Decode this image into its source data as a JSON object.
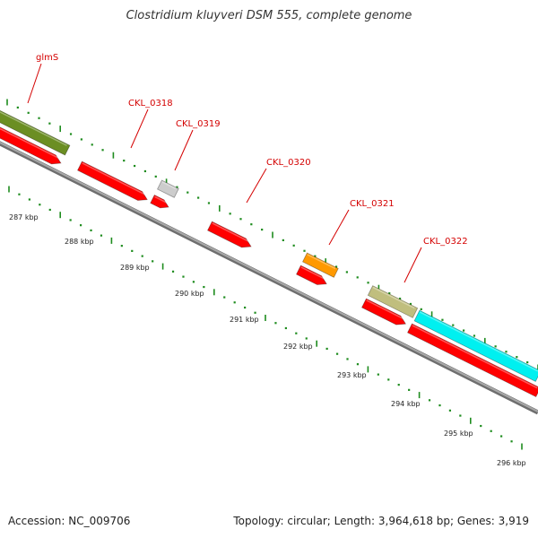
{
  "title": "Clostridium kluyveri DSM 555, complete genome",
  "footer": {
    "accession": "Accession: NC_009706",
    "stats": "Topology: circular; Length: 3,964,618 bp; Genes: 3,919"
  },
  "colors": {
    "backbone": "#888888",
    "forward_gene": "#ff0000",
    "tick": "#1e8c1e",
    "label": "#d40000",
    "kbp_label": "#222222",
    "feature_olive": "#6b8e23",
    "feature_grey": "#cccccc",
    "feature_orange": "#ff9900",
    "feature_khaki": "#c0be7e",
    "feature_cyan": "#00f0f0"
  },
  "gene_labels": [
    {
      "name": "glmS"
    },
    {
      "name": "CKL_0318"
    },
    {
      "name": "CKL_0319"
    },
    {
      "name": "CKL_0320"
    },
    {
      "name": "CKL_0321"
    },
    {
      "name": "CKL_0322"
    }
  ],
  "kbp_labels": [
    "287 kbp",
    "288 kbp",
    "289 kbp",
    "290 kbp",
    "291 kbp",
    "292 kbp",
    "293 kbp",
    "294 kbp",
    "295 kbp",
    "296 kbp"
  ]
}
